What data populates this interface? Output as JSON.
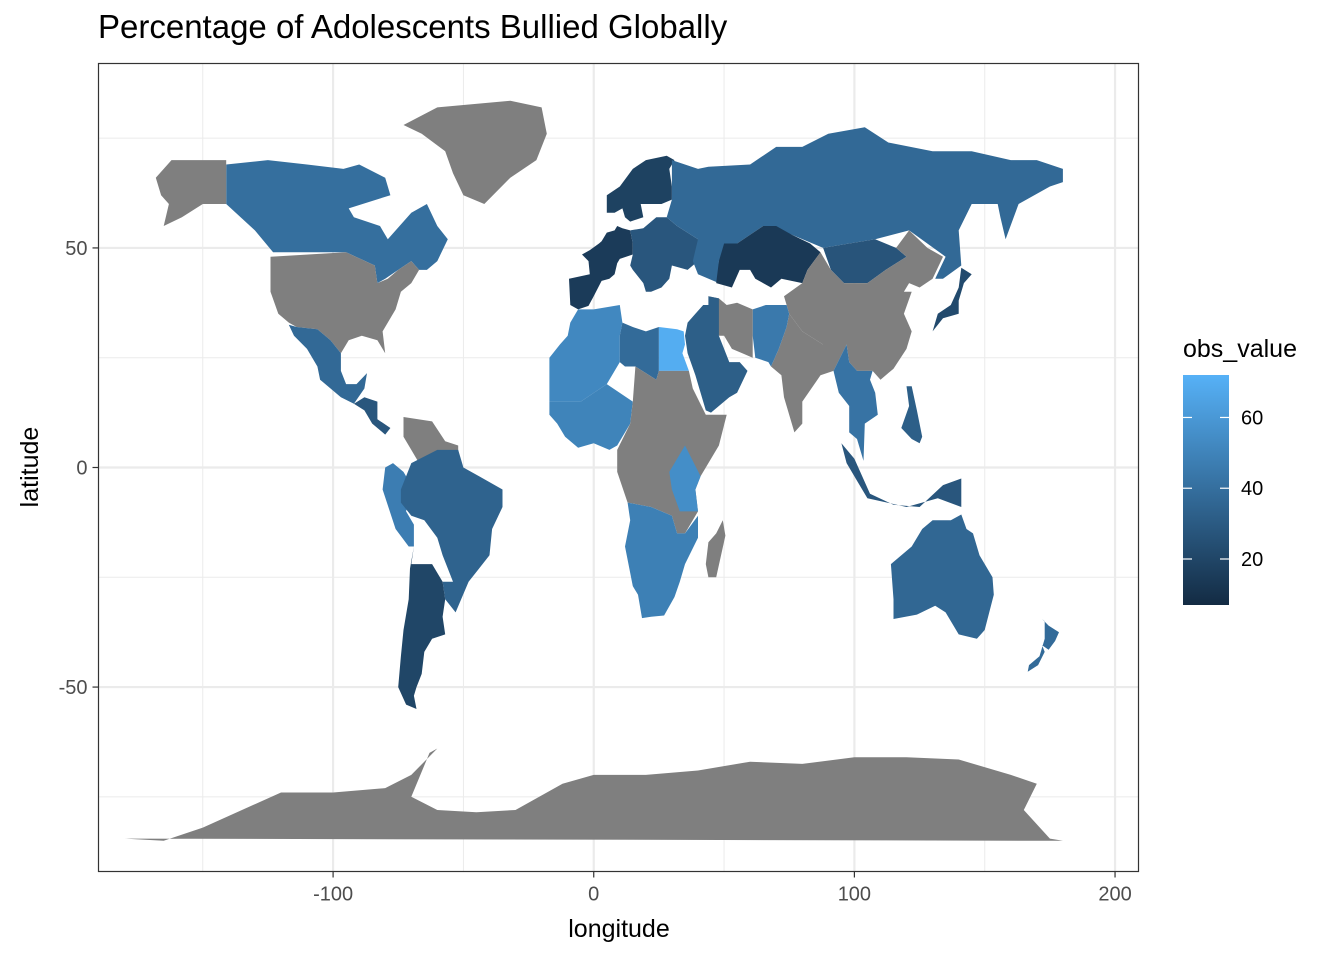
{
  "chart_data": {
    "type": "choropleth",
    "title": "Percentage of Adolescents Bullied Globally",
    "xlabel": "longitude",
    "ylabel": "latitude",
    "xlim": [
      -190,
      209
    ],
    "ylim": [
      -92,
      92
    ],
    "x_ticks": [
      -100,
      0,
      100,
      200
    ],
    "x_tick_labels": [
      "-100",
      "0",
      "100",
      "200"
    ],
    "y_ticks": [
      -50,
      0,
      50
    ],
    "y_tick_labels": [
      "-50",
      "0",
      "50"
    ],
    "grid": true,
    "legend": {
      "title": "obs_value",
      "position": "right",
      "range": [
        7,
        72
      ],
      "ticks": [
        20,
        40,
        60
      ],
      "tick_labels": [
        "20",
        "40",
        "60"
      ],
      "low_color": "#132B43",
      "high_color": "#56B1F7"
    },
    "missing_color": "#7f7f7f",
    "regions": [
      {
        "name": "Canada",
        "value": 40
      },
      {
        "name": "Greenland",
        "value": null
      },
      {
        "name": "Alaska",
        "value": null
      },
      {
        "name": "United States",
        "value": null
      },
      {
        "name": "Mexico",
        "value": 37
      },
      {
        "name": "Central America",
        "value": 28
      },
      {
        "name": "Venezuela / Guyana",
        "value": null
      },
      {
        "name": "Peru / Ecuador",
        "value": 47
      },
      {
        "name": "Brazil",
        "value": 34
      },
      {
        "name": "Argentina / Chile",
        "value": 20
      },
      {
        "name": "Western Europe",
        "value": 15
      },
      {
        "name": "Eastern Europe",
        "value": 28
      },
      {
        "name": "Scandinavia",
        "value": 18
      },
      {
        "name": "Russia",
        "value": 37
      },
      {
        "name": "Kazakhstan",
        "value": 14
      },
      {
        "name": "Mongolia",
        "value": 27
      },
      {
        "name": "China",
        "value": null
      },
      {
        "name": "India",
        "value": null
      },
      {
        "name": "Afghanistan / Pakistan",
        "value": 45
      },
      {
        "name": "Iran",
        "value": null
      },
      {
        "name": "Arabian Peninsula",
        "value": 32
      },
      {
        "name": "North Africa (Maghreb)",
        "value": 52
      },
      {
        "name": "Libya",
        "value": 38
      },
      {
        "name": "Egypt",
        "value": 70
      },
      {
        "name": "West Africa",
        "value": 50
      },
      {
        "name": "Central Africa",
        "value": null
      },
      {
        "name": "East Africa",
        "value": 55
      },
      {
        "name": "Southern Africa",
        "value": 48
      },
      {
        "name": "Madagascar",
        "value": null
      },
      {
        "name": "Southeast Asia",
        "value": 42
      },
      {
        "name": "Japan",
        "value": 22
      },
      {
        "name": "Indonesia",
        "value": 28
      },
      {
        "name": "Philippines",
        "value": 32
      },
      {
        "name": "Australia",
        "value": 36
      },
      {
        "name": "New Zealand",
        "value": 38
      },
      {
        "name": "Antarctica",
        "value": null
      }
    ]
  }
}
